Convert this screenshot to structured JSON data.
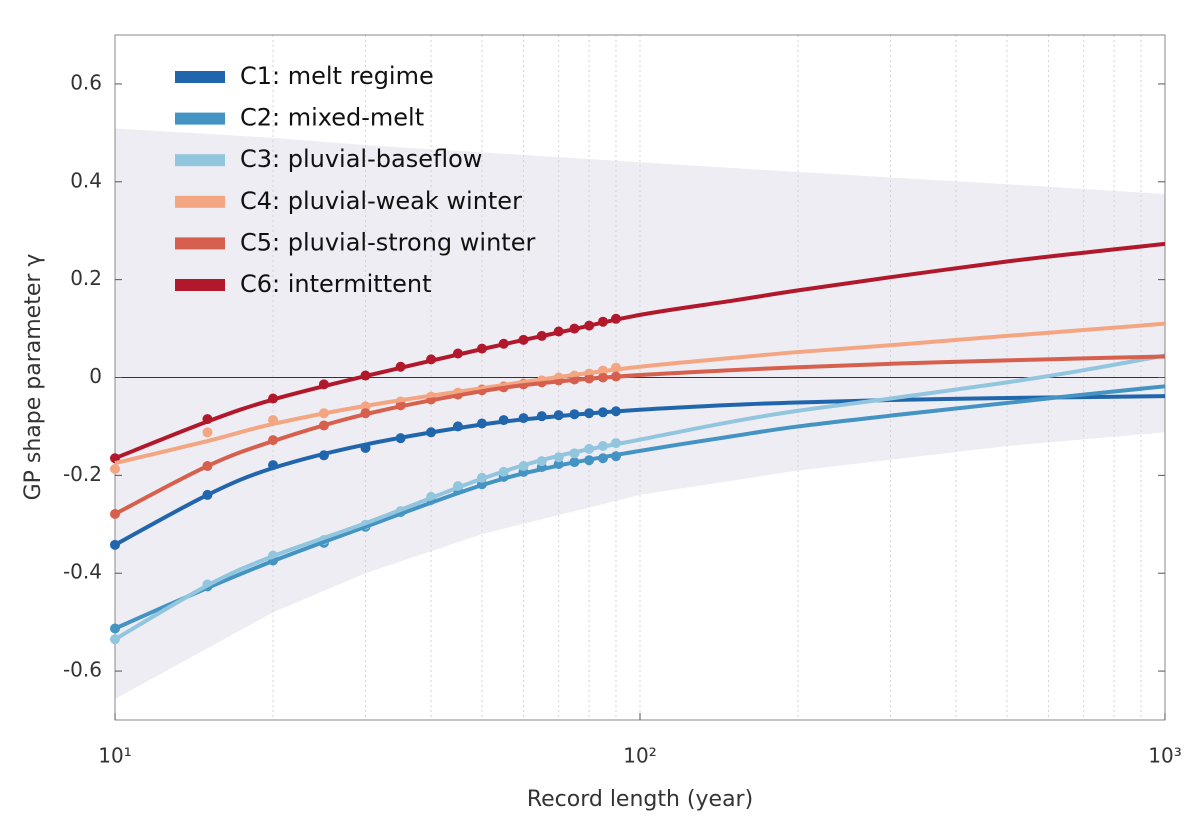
{
  "chart_data": {
    "type": "scatter-fit",
    "xlabel": "Record length (year)",
    "ylabel": "GP shape parameter γ",
    "xscale": "log",
    "xlim": [
      10,
      1000
    ],
    "ylim": [
      -0.7,
      0.7
    ],
    "xticks": [
      {
        "value": 10,
        "label": "10¹"
      },
      {
        "value": 100,
        "label": "10²"
      },
      {
        "value": 1000,
        "label": "10³"
      }
    ],
    "yticks": [
      0.6,
      0.4,
      0.2,
      0,
      -0.2,
      -0.4,
      -0.6
    ],
    "xgrid": [
      20,
      30,
      40,
      50,
      60,
      70,
      80,
      90,
      100,
      200,
      300,
      400,
      500,
      600,
      700,
      800,
      900
    ],
    "hline": 0,
    "legend": "upper-left",
    "x": [
      10,
      15,
      20,
      25,
      30,
      35,
      40,
      45,
      50,
      55,
      60,
      65,
      70,
      75,
      80,
      85,
      90
    ],
    "fit_x": [
      10,
      15,
      20,
      30,
      50,
      70,
      100,
      150,
      200,
      300,
      500,
      700,
      1000
    ],
    "band": {
      "color": "#eeedf3",
      "x": [
        10,
        20,
        30,
        50,
        100,
        200,
        500,
        1000
      ],
      "upper": [
        0.509,
        0.49,
        0.475,
        0.46,
        0.44,
        0.42,
        0.395,
        0.375
      ],
      "lower": [
        -0.657,
        -0.48,
        -0.4,
        -0.32,
        -0.24,
        -0.19,
        -0.14,
        -0.112
      ]
    },
    "series": [
      {
        "name": "C1: melt regime",
        "color": "#2166ac",
        "values": [
          -0.342,
          -0.24,
          -0.179,
          -0.159,
          -0.144,
          -0.124,
          -0.112,
          -0.1,
          -0.094,
          -0.087,
          -0.083,
          -0.079,
          -0.077,
          -0.075,
          -0.073,
          -0.071,
          -0.069
        ],
        "fit_values": [
          -0.342,
          -0.24,
          -0.185,
          -0.137,
          -0.096,
          -0.079,
          -0.066,
          -0.056,
          -0.051,
          -0.046,
          -0.042,
          -0.04,
          -0.038
        ]
      },
      {
        "name": "C2: mixed-melt",
        "color": "#4393c3",
        "values": [
          -0.513,
          -0.427,
          -0.374,
          -0.338,
          -0.305,
          -0.275,
          -0.25,
          -0.23,
          -0.218,
          -0.203,
          -0.193,
          -0.183,
          -0.177,
          -0.173,
          -0.169,
          -0.165,
          -0.161
        ],
        "fit_values": [
          -0.513,
          -0.43,
          -0.375,
          -0.305,
          -0.22,
          -0.18,
          -0.15,
          -0.12,
          -0.1,
          -0.078,
          -0.052,
          -0.035,
          -0.018
        ]
      },
      {
        "name": "C3: pluvial-baseflow",
        "color": "#92c5de",
        "values": [
          -0.535,
          -0.423,
          -0.364,
          -0.332,
          -0.301,
          -0.273,
          -0.244,
          -0.222,
          -0.205,
          -0.193,
          -0.181,
          -0.171,
          -0.163,
          -0.155,
          -0.146,
          -0.14,
          -0.134
        ],
        "fit_values": [
          -0.535,
          -0.425,
          -0.365,
          -0.298,
          -0.207,
          -0.16,
          -0.127,
          -0.09,
          -0.068,
          -0.043,
          -0.01,
          0.015,
          0.045
        ]
      },
      {
        "name": "C4: pluvial-weak winter",
        "color": "#f4a582",
        "values": [
          -0.187,
          -0.112,
          -0.087,
          -0.073,
          -0.059,
          -0.049,
          -0.039,
          -0.031,
          -0.024,
          -0.018,
          -0.012,
          -0.006,
          0,
          0.004,
          0.008,
          0.014,
          0.02
        ],
        "fit_values": [
          -0.175,
          -0.13,
          -0.095,
          -0.058,
          -0.022,
          0.001,
          0.022,
          0.04,
          0.052,
          0.066,
          0.085,
          0.097,
          0.11
        ]
      },
      {
        "name": "C5: pluvial-strong winter",
        "color": "#d6604d",
        "values": [
          -0.279,
          -0.181,
          -0.128,
          -0.098,
          -0.073,
          -0.057,
          -0.045,
          -0.035,
          -0.026,
          -0.02,
          -0.014,
          -0.01,
          -0.006,
          -0.004,
          -0.002,
          0,
          0.002
        ],
        "fit_values": [
          -0.279,
          -0.181,
          -0.13,
          -0.075,
          -0.028,
          -0.008,
          0.005,
          0.015,
          0.021,
          0.028,
          0.035,
          0.039,
          0.043
        ]
      },
      {
        "name": "C6: intermittent",
        "color": "#b2182b",
        "values": [
          -0.165,
          -0.085,
          -0.043,
          -0.014,
          0.004,
          0.022,
          0.037,
          0.049,
          0.059,
          0.069,
          0.077,
          0.085,
          0.094,
          0.1,
          0.106,
          0.114,
          0.12
        ],
        "fit_values": [
          -0.165,
          -0.09,
          -0.045,
          0.003,
          0.058,
          0.092,
          0.128,
          0.157,
          0.178,
          0.205,
          0.237,
          0.255,
          0.273
        ]
      }
    ]
  }
}
